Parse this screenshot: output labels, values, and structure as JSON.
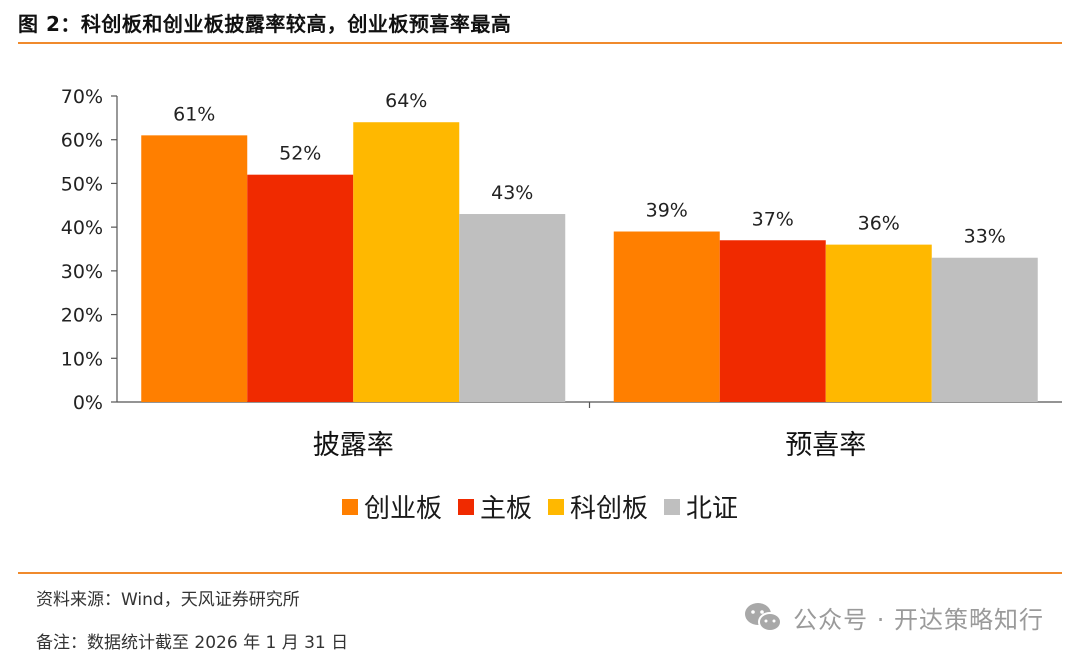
{
  "figure": {
    "title": "图 2：科创板和创业板披露率较高，创业板预喜率最高"
  },
  "chart_data": {
    "type": "bar",
    "categories": [
      "披露率",
      "预喜率"
    ],
    "series": [
      {
        "name": "创业板",
        "color": "#ff7f00",
        "values": [
          61,
          39
        ],
        "labels": [
          "61%",
          "39%"
        ]
      },
      {
        "name": "主板",
        "color": "#f02a00",
        "values": [
          52,
          37
        ],
        "labels": [
          "52%",
          "37%"
        ]
      },
      {
        "name": "科创板",
        "color": "#ffb800",
        "values": [
          64,
          36
        ],
        "labels": [
          "64%",
          "36%"
        ]
      },
      {
        "name": "北证",
        "color": "#bfbfbf",
        "values": [
          43,
          33
        ],
        "labels": [
          "43%",
          "33%"
        ]
      }
    ],
    "ylim": [
      0,
      70
    ],
    "yticks": [
      "0%",
      "10%",
      "20%",
      "30%",
      "40%",
      "50%",
      "60%",
      "70%"
    ],
    "ytick_values": [
      0,
      10,
      20,
      30,
      40,
      50,
      60,
      70
    ],
    "legend_position": "bottom",
    "grid": false
  },
  "footer": {
    "source": "资料来源：Wind，天风证券研究所",
    "remark": "备注：数据统计截至 2026 年 1 月 31 日",
    "watermark": "公众号 · 开达策略知行",
    "watermark_icon": "wechat-icon"
  }
}
